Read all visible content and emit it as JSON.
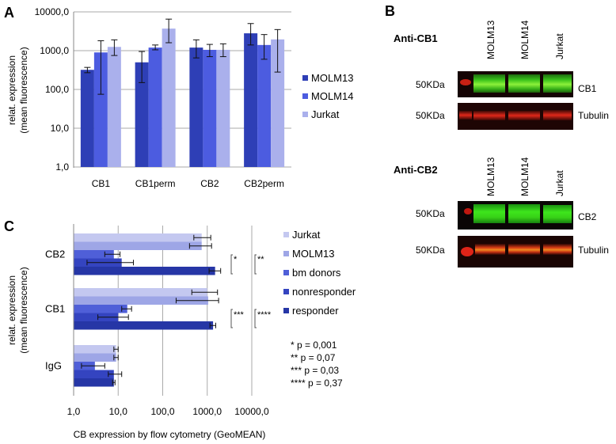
{
  "panels": {
    "a_label": "A",
    "b_label": "B",
    "c_label": "C"
  },
  "chart_data": [
    {
      "type": "bar",
      "panel": "A",
      "orientation": "vertical",
      "scale": "log",
      "ylim": [
        1,
        10000
      ],
      "yticks": [
        "1,0",
        "10,0",
        "100,0",
        "1000,0",
        "10000,0"
      ],
      "ylabel_lines": [
        "relat. expression",
        "(mean fluorescence)"
      ],
      "categories": [
        "CB1",
        "CB1perm",
        "CB2",
        "CB2perm"
      ],
      "legend_position": "right",
      "series": [
        {
          "name": "MOLM13",
          "color": "#2e3fb6",
          "values": [
            320,
            500,
            1200,
            2800
          ],
          "err_low": [
            270,
            150,
            650,
            1400
          ],
          "err_high": [
            370,
            950,
            1900,
            5000
          ]
        },
        {
          "name": "MOLM14",
          "color": "#4c5ce0",
          "values": [
            900,
            1200,
            1050,
            1400
          ],
          "err_low": [
            75,
            1050,
            700,
            600
          ],
          "err_high": [
            1800,
            1400,
            1450,
            2600
          ]
        },
        {
          "name": "Jurkat",
          "color": "#aab0ec",
          "values": [
            1250,
            3700,
            1050,
            1950
          ],
          "err_low": [
            750,
            1600,
            700,
            280
          ],
          "err_high": [
            1900,
            6500,
            1500,
            3500
          ]
        }
      ]
    },
    {
      "type": "bar",
      "panel": "C",
      "orientation": "horizontal",
      "scale": "log",
      "xlim": [
        1,
        10000
      ],
      "xticks": [
        "1,0",
        "10,0",
        "100,0",
        "1000,0",
        "10000,0"
      ],
      "xlabel": "CB expression by flow cytometry (GeoMEAN)",
      "ylabel_lines": [
        "relat. expression",
        "(mean fluorescence)"
      ],
      "categories": [
        "CB2",
        "CB1",
        "IgG"
      ],
      "legend_position": "right",
      "series": [
        {
          "name": "Jurkat",
          "color": "#c4c8f0",
          "values": [
            750,
            1000,
            9
          ],
          "err_low": [
            500,
            450,
            8
          ],
          "err_high": [
            1200,
            1700,
            10
          ]
        },
        {
          "name": "MOLM13",
          "color": "#9ea6e6",
          "values": [
            750,
            1050,
            9
          ],
          "err_low": [
            400,
            200,
            8
          ],
          "err_high": [
            1250,
            1800,
            10
          ]
        },
        {
          "name": "bm donors",
          "color": "#4f5fd8",
          "values": [
            8,
            16,
            3
          ],
          "err_low": [
            5,
            12,
            1.5
          ],
          "err_high": [
            11,
            20,
            5
          ]
        },
        {
          "name": "nonresponder",
          "color": "#3444c0",
          "values": [
            12,
            10,
            8
          ],
          "err_low": [
            2,
            3.5,
            6
          ],
          "err_high": [
            22,
            17,
            12
          ]
        },
        {
          "name": "responder",
          "color": "#2636a6",
          "values": [
            1500,
            1350,
            8
          ],
          "err_low": [
            1100,
            1150,
            7.5
          ],
          "err_high": [
            2000,
            1550,
            8.5
          ]
        }
      ],
      "significance": {
        "brackets": {
          "cb2_left": "*",
          "cb2_right": "**",
          "cb1_left": "***",
          "cb1_right": "****"
        },
        "pvalues": [
          "* p = 0,001",
          "** p = 0,07",
          "*** p = 0,03",
          "**** p = 0,37"
        ]
      }
    }
  ],
  "blots": {
    "top": {
      "title": "Anti-CB1",
      "lanes": [
        "MOLM13",
        "MOLM14",
        "Jurkat"
      ],
      "rows": [
        {
          "marker": "50KDa",
          "label": "CB1"
        },
        {
          "marker": "50KDa",
          "label": "Tubulin"
        }
      ]
    },
    "bottom": {
      "title": "Anti-CB2",
      "lanes": [
        "MOLM13",
        "MOLM14",
        "Jurkat"
      ],
      "rows": [
        {
          "marker": "50KDa",
          "label": "CB2"
        },
        {
          "marker": "50KDa",
          "label": "Tubulin"
        }
      ]
    }
  }
}
